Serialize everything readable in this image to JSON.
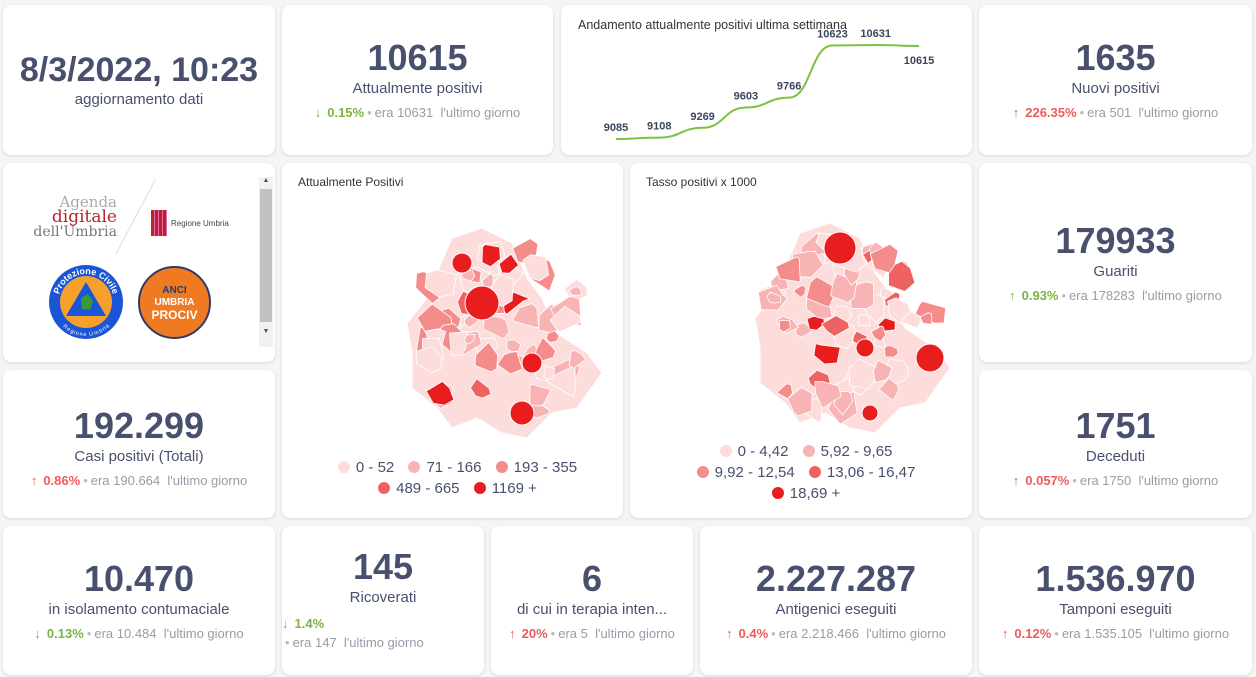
{
  "update": {
    "datetime": "8/3/2022, 10:23",
    "label": "aggiornamento dati"
  },
  "attuali": {
    "value": "10615",
    "label": "Attualmente positivi",
    "pct": "0.15%",
    "prev": "era 10631",
    "suffix": "l'ultimo giorno",
    "dir": "down"
  },
  "trend": {
    "title": "Andamento attualmente positivi ultima settimana",
    "values": [
      9085,
      9108,
      9269,
      9603,
      9766,
      10623,
      10631,
      10615
    ],
    "color": "#7cc242"
  },
  "nuovi": {
    "value": "1635",
    "label": "Nuovi positivi",
    "pct": "226.35%",
    "prev": "era 501",
    "suffix": "l'ultimo giorno",
    "dir": "up"
  },
  "logos": {
    "agenda": [
      "Agenda",
      "digitale",
      "dell'Umbria"
    ],
    "regione": "Regione Umbria",
    "protezione": "Protezione Civile",
    "protezione_sub": "Regione Umbria",
    "anci": [
      "ANCI",
      "UMBRIA",
      "PROCIV"
    ]
  },
  "map1": {
    "title": "Attualmente Positivi",
    "legend": [
      {
        "label": "0 - 52",
        "color": "#fddcdc"
      },
      {
        "label": "71 - 166",
        "color": "#f8b4b4"
      },
      {
        "label": "193 - 355",
        "color": "#f48c8c"
      },
      {
        "label": "489 - 665",
        "color": "#ef6262"
      },
      {
        "label": "1169 +",
        "color": "#e81e1e"
      }
    ]
  },
  "map2": {
    "title": "Tasso positivi x 1000",
    "legend": [
      {
        "label": "0 - 4,42",
        "color": "#fddcdc"
      },
      {
        "label": "5,92 - 9,65",
        "color": "#f8b4b4"
      },
      {
        "label": "9,92 - 12,54",
        "color": "#f48c8c"
      },
      {
        "label": "13,06 - 16,47",
        "color": "#ef6262"
      },
      {
        "label": "18,69 +",
        "color": "#e81e1e"
      }
    ]
  },
  "guariti": {
    "value": "179933",
    "label": "Guariti",
    "pct": "0.93%",
    "prev": "era 178283",
    "suffix": "l'ultimo giorno",
    "dir": "up-green"
  },
  "casi": {
    "value": "192.299",
    "label": "Casi positivi (Totali)",
    "pct": "0.86%",
    "prev": "era 190.664",
    "suffix": "l'ultimo giorno",
    "dir": "up"
  },
  "deceduti": {
    "value": "1751",
    "label": "Deceduti",
    "pct": "0.057%",
    "prev": "era 1750",
    "suffix": "l'ultimo giorno",
    "dir": "up"
  },
  "isolamento": {
    "value": "10.470",
    "label": "in isolamento contumaciale",
    "pct": "0.13%",
    "prev": "era 10.484",
    "suffix": "l'ultimo giorno",
    "dir": "down"
  },
  "ricoverati": {
    "value": "145",
    "label": "Ricoverati",
    "pct": "1.4%",
    "prev": "era 147",
    "suffix": "l'ultimo giorno",
    "dir": "down"
  },
  "terapia": {
    "value": "6",
    "label": "di cui in terapia inten...",
    "pct": "20%",
    "prev": "era 5",
    "suffix": "l'ultimo giorno",
    "dir": "up"
  },
  "antigenici": {
    "value": "2.227.287",
    "label": "Antigenici eseguiti",
    "pct": "0.4%",
    "prev": "era 2.218.466",
    "suffix": "l'ultimo giorno",
    "dir": "up"
  },
  "tamponi": {
    "value": "1.536.970",
    "label": "Tamponi eseguiti",
    "pct": "0.12%",
    "prev": "era 1.535.105",
    "suffix": "l'ultimo giorno",
    "dir": "up"
  }
}
